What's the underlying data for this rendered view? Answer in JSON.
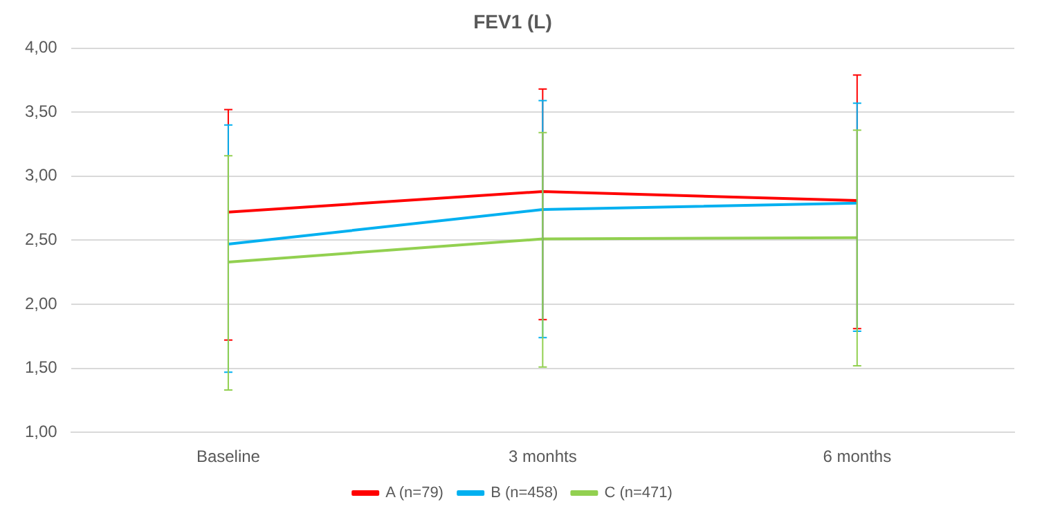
{
  "chart_data": {
    "type": "line",
    "title": "FEV1 (L)",
    "categories": [
      "Baseline",
      "3 monhts",
      "6 months"
    ],
    "series": [
      {
        "name": "A (n=79)",
        "color": "#ff0000",
        "values": [
          2.72,
          2.88,
          2.81
        ],
        "errors": [
          [
            1.72,
            3.52
          ],
          [
            1.88,
            3.68
          ],
          [
            1.81,
            3.79
          ]
        ]
      },
      {
        "name": "B (n=458)",
        "color": "#00b0f0",
        "values": [
          2.47,
          2.74,
          2.79
        ],
        "errors": [
          [
            1.47,
            3.4
          ],
          [
            1.74,
            3.59
          ],
          [
            1.79,
            3.57
          ]
        ]
      },
      {
        "name": "C (n=471)",
        "color": "#92d050",
        "values": [
          2.33,
          2.51,
          2.52
        ],
        "errors": [
          [
            1.33,
            3.16
          ],
          [
            1.51,
            3.34
          ],
          [
            1.52,
            3.36
          ]
        ]
      }
    ],
    "ylim": [
      1,
      4
    ],
    "yticks": [
      {
        "value": 1,
        "label": "1,00"
      },
      {
        "value": 1.5,
        "label": "1,50"
      },
      {
        "value": 2,
        "label": "2,00"
      },
      {
        "value": 2.5,
        "label": "2,50"
      },
      {
        "value": 3,
        "label": "3,00"
      },
      {
        "value": 3.5,
        "label": "3,50"
      },
      {
        "value": 4,
        "label": "4,00"
      }
    ],
    "grid": "y",
    "legend": "bottom",
    "marker": "none",
    "line_style": "solid"
  }
}
